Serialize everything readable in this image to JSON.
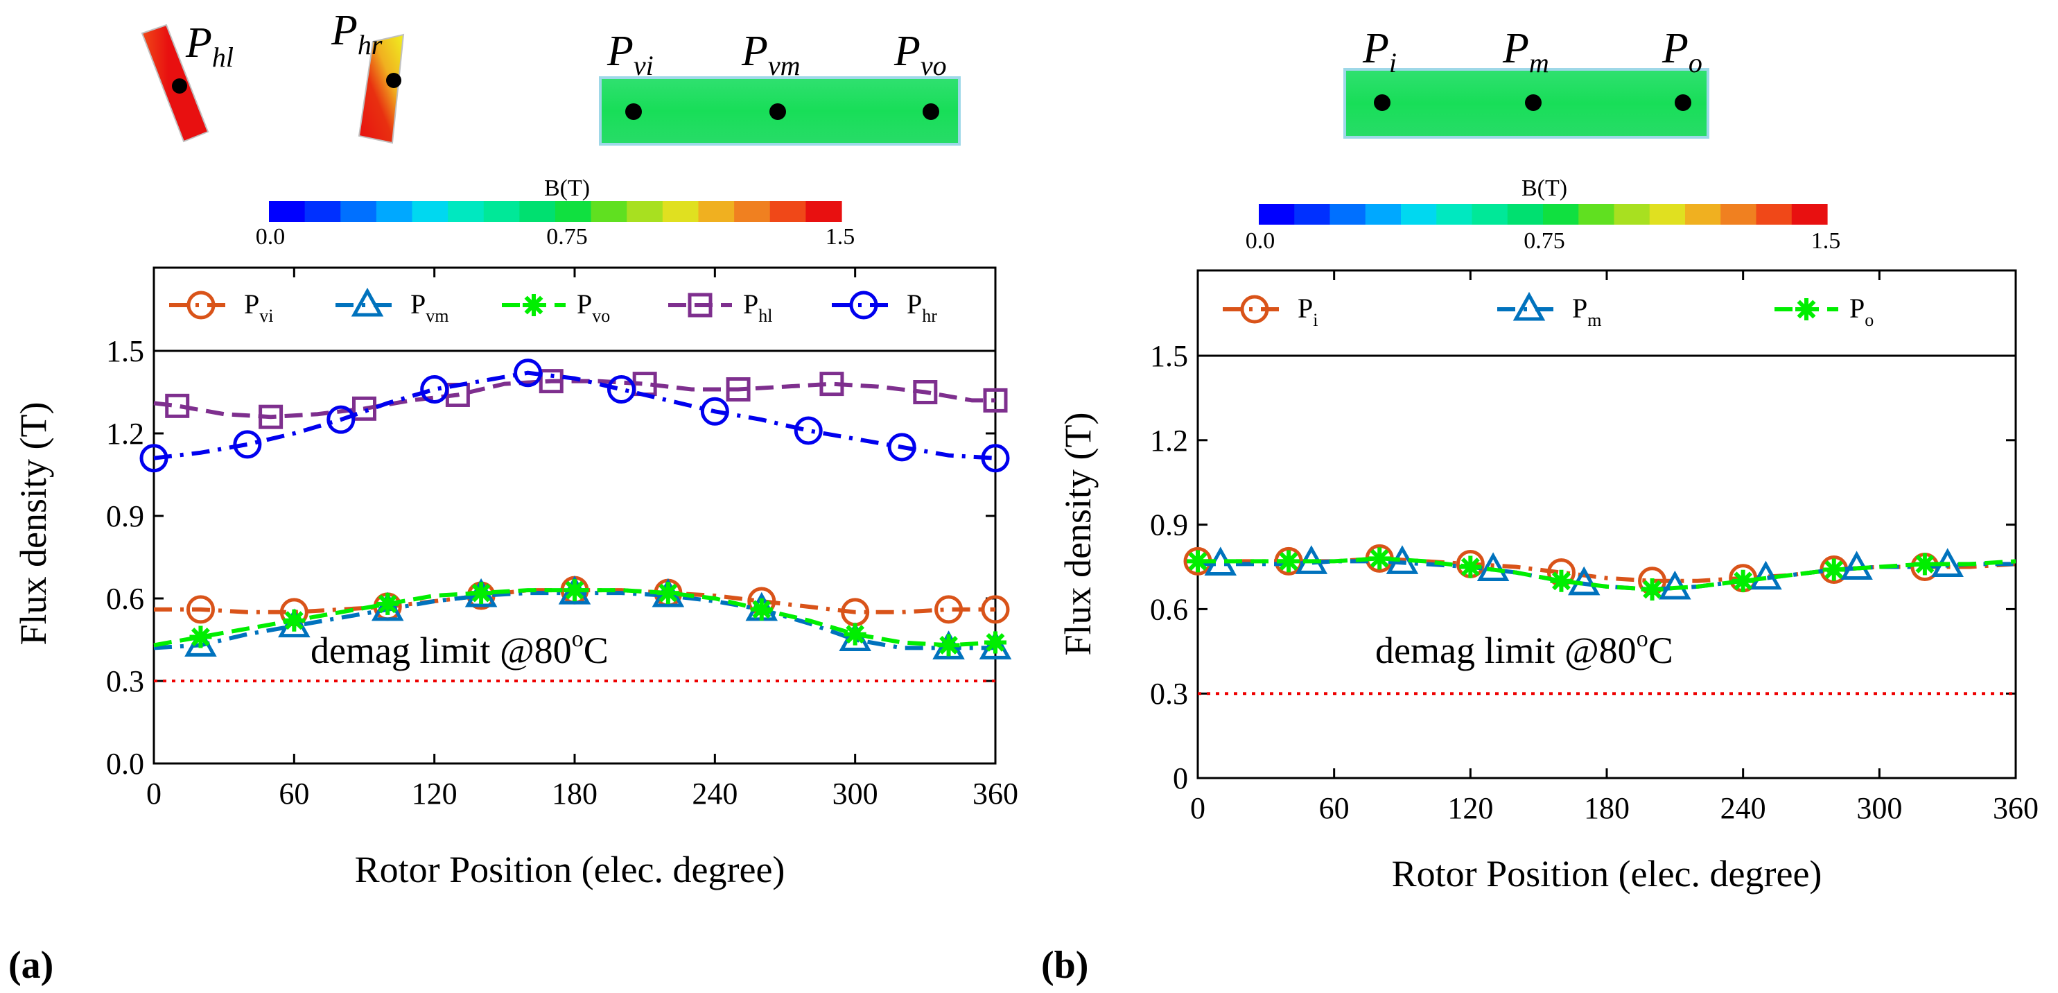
{
  "colors": {
    "vi": "#d95319",
    "vm": "#0072bd",
    "vo": "#00ee00",
    "hl": "#7e2f8e",
    "hr": "#0000ee",
    "limit": "#ee0000"
  },
  "colorbar": [
    "#0000ff",
    "#0030ff",
    "#0070ff",
    "#00a8ff",
    "#00d8f0",
    "#00e8c0",
    "#00e898",
    "#00e070",
    "#10e040",
    "#60e020",
    "#a8e020",
    "#e0e020",
    "#f0b020",
    "#f08020",
    "#f04818",
    "#e81010"
  ],
  "panels": [
    {
      "id": "a",
      "panel_label": "(a)",
      "magnet_labels": [
        {
          "main": "P",
          "sub": "hl"
        },
        {
          "main": "P",
          "sub": "hr"
        },
        {
          "main": "P",
          "sub": "vi"
        },
        {
          "main": "P",
          "sub": "vm"
        },
        {
          "main": "P",
          "sub": "vo"
        }
      ],
      "colorbar_title": "B(T)",
      "colorbar_ticks": [
        "0.0",
        "0.75",
        "1.5"
      ],
      "annotation": {
        "text": "demag limit @80",
        "sup": "o",
        "tail": "C"
      }
    },
    {
      "id": "b",
      "panel_label": "(b)",
      "magnet_labels": [
        {
          "main": "P",
          "sub": "i"
        },
        {
          "main": "P",
          "sub": "m"
        },
        {
          "main": "P",
          "sub": "o"
        }
      ],
      "colorbar_title": "B(T)",
      "colorbar_ticks": [
        "0.0",
        "0.75",
        "1.5"
      ],
      "annotation": {
        "text": "demag limit @80",
        "sup": "o",
        "tail": "C"
      }
    }
  ],
  "chart_data": [
    {
      "type": "line",
      "xlabel": "Rotor Position (elec. degree)",
      "ylabel": "Flux density (T)",
      "xlim": [
        0,
        360
      ],
      "ylim": [
        0,
        1.8
      ],
      "xticks": [
        "0",
        "60",
        "120",
        "180",
        "240",
        "300",
        "360"
      ],
      "yticks": [
        "0.0",
        "0.3",
        "0.6",
        "0.9",
        "1.2",
        "1.5"
      ],
      "legend_location": "top (inside, above 1.5)",
      "series": [
        {
          "key": "vi",
          "name": "P",
          "sub": "vi",
          "marker": "circle",
          "dash": "dashdot",
          "x": [
            0,
            20,
            40,
            60,
            80,
            100,
            120,
            140,
            160,
            180,
            200,
            220,
            240,
            260,
            280,
            300,
            320,
            340,
            360
          ],
          "y": [
            0.56,
            0.56,
            0.55,
            0.55,
            0.56,
            0.57,
            0.59,
            0.61,
            0.63,
            0.63,
            0.63,
            0.62,
            0.61,
            0.59,
            0.57,
            0.55,
            0.55,
            0.56,
            0.56
          ],
          "markers_x": [
            20,
            60,
            100,
            140,
            180,
            220,
            260,
            300,
            340,
            360
          ]
        },
        {
          "key": "vm",
          "name": "P",
          "sub": "vm",
          "marker": "triangle",
          "dash": "dashdot",
          "x": [
            0,
            20,
            40,
            60,
            80,
            100,
            120,
            140,
            160,
            180,
            200,
            220,
            240,
            260,
            280,
            300,
            320,
            340,
            360
          ],
          "y": [
            0.42,
            0.43,
            0.47,
            0.5,
            0.53,
            0.56,
            0.59,
            0.61,
            0.62,
            0.62,
            0.62,
            0.61,
            0.59,
            0.56,
            0.51,
            0.45,
            0.42,
            0.42,
            0.42
          ],
          "markers_x": [
            20,
            60,
            100,
            140,
            180,
            220,
            260,
            300,
            340,
            360
          ]
        },
        {
          "key": "vo",
          "name": "P",
          "sub": "vo",
          "marker": "asterisk",
          "dash": "dashed",
          "x": [
            0,
            20,
            40,
            60,
            80,
            100,
            120,
            140,
            160,
            180,
            200,
            220,
            240,
            260,
            280,
            300,
            320,
            340,
            360
          ],
          "y": [
            0.43,
            0.46,
            0.49,
            0.52,
            0.55,
            0.58,
            0.61,
            0.62,
            0.63,
            0.63,
            0.63,
            0.62,
            0.6,
            0.56,
            0.52,
            0.47,
            0.44,
            0.43,
            0.44
          ],
          "markers_x": [
            20,
            60,
            100,
            140,
            180,
            220,
            260,
            300,
            340,
            360
          ]
        },
        {
          "key": "hl",
          "name": "P",
          "sub": "hl",
          "marker": "square",
          "dash": "dashed",
          "x": [
            0,
            10,
            30,
            50,
            70,
            90,
            110,
            130,
            150,
            170,
            190,
            210,
            230,
            250,
            270,
            290,
            310,
            330,
            350,
            360
          ],
          "y": [
            1.31,
            1.3,
            1.27,
            1.26,
            1.27,
            1.29,
            1.32,
            1.34,
            1.38,
            1.39,
            1.39,
            1.38,
            1.36,
            1.36,
            1.37,
            1.38,
            1.37,
            1.35,
            1.32,
            1.32
          ],
          "markers_x": [
            10,
            50,
            90,
            130,
            170,
            210,
            250,
            290,
            330,
            360
          ]
        },
        {
          "key": "hr",
          "name": "P",
          "sub": "hr",
          "marker": "circle",
          "dash": "dashdot",
          "x": [
            0,
            20,
            40,
            60,
            80,
            100,
            120,
            140,
            160,
            180,
            200,
            220,
            240,
            260,
            280,
            300,
            320,
            340,
            360
          ],
          "y": [
            1.11,
            1.13,
            1.16,
            1.2,
            1.25,
            1.31,
            1.36,
            1.39,
            1.42,
            1.4,
            1.36,
            1.32,
            1.28,
            1.25,
            1.21,
            1.18,
            1.15,
            1.12,
            1.11
          ],
          "markers_x": [
            0,
            40,
            80,
            120,
            160,
            200,
            240,
            280,
            320,
            360
          ]
        }
      ],
      "reference_line": {
        "y": 0.3,
        "label": "demag limit @80°C"
      }
    },
    {
      "type": "line",
      "xlabel": "Rotor Position (elec. degree)",
      "ylabel": "Flux density (T)",
      "xlim": [
        0,
        360
      ],
      "ylim": [
        0,
        1.8
      ],
      "xticks": [
        "0",
        "60",
        "120",
        "180",
        "240",
        "300",
        "360"
      ],
      "yticks": [
        "0",
        "0.3",
        "0.6",
        "0.9",
        "1.2",
        "1.5"
      ],
      "legend_location": "top (inside, above 1.5)",
      "series": [
        {
          "key": "vi",
          "name": "P",
          "sub": "i",
          "marker": "circle",
          "dash": "dashdot",
          "x": [
            0,
            20,
            40,
            60,
            80,
            100,
            120,
            140,
            160,
            180,
            200,
            220,
            240,
            260,
            280,
            300,
            320,
            340,
            360
          ],
          "y": [
            0.77,
            0.77,
            0.77,
            0.77,
            0.78,
            0.77,
            0.76,
            0.75,
            0.73,
            0.71,
            0.7,
            0.7,
            0.71,
            0.72,
            0.74,
            0.75,
            0.75,
            0.75,
            0.76
          ],
          "markers_x": [
            0,
            40,
            80,
            120,
            160,
            200,
            240,
            280,
            320
          ]
        },
        {
          "key": "vm",
          "name": "P",
          "sub": "m",
          "marker": "triangle",
          "dash": "dashdot",
          "x": [
            0,
            20,
            40,
            60,
            80,
            100,
            120,
            140,
            160,
            180,
            200,
            220,
            240,
            260,
            280,
            300,
            320,
            340,
            360
          ],
          "y": [
            0.76,
            0.76,
            0.76,
            0.77,
            0.77,
            0.76,
            0.75,
            0.73,
            0.7,
            0.68,
            0.67,
            0.68,
            0.7,
            0.72,
            0.74,
            0.75,
            0.75,
            0.76,
            0.76
          ],
          "markers_x": [
            10,
            50,
            90,
            130,
            170,
            210,
            250,
            290,
            330
          ]
        },
        {
          "key": "vo",
          "name": "P",
          "sub": "o",
          "marker": "asterisk",
          "dash": "dashed",
          "x": [
            0,
            20,
            40,
            60,
            80,
            100,
            120,
            140,
            160,
            180,
            200,
            220,
            240,
            260,
            280,
            300,
            320,
            340,
            360
          ],
          "y": [
            0.77,
            0.77,
            0.77,
            0.77,
            0.78,
            0.77,
            0.75,
            0.73,
            0.7,
            0.68,
            0.67,
            0.68,
            0.7,
            0.72,
            0.74,
            0.75,
            0.76,
            0.76,
            0.77
          ],
          "markers_x": [
            0,
            40,
            80,
            120,
            160,
            200,
            240,
            280,
            320
          ]
        }
      ],
      "reference_line": {
        "y": 0.3,
        "label": "demag limit @80°C"
      }
    }
  ]
}
